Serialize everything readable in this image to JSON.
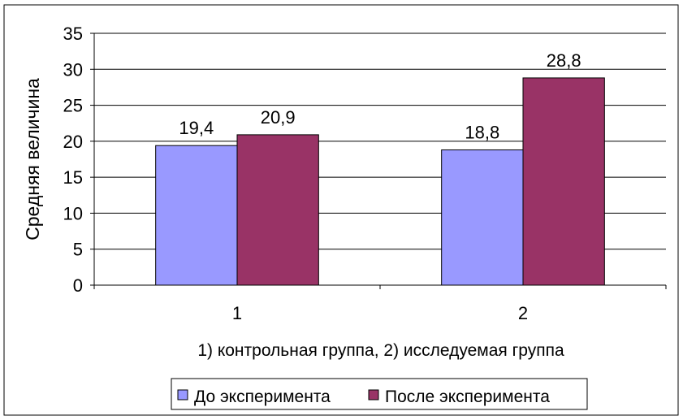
{
  "chart_data": {
    "type": "bar",
    "categories": [
      "1",
      "2"
    ],
    "series": [
      {
        "name": "До эксперимента",
        "values": [
          19.4,
          18.8
        ],
        "labels": [
          "19,4",
          "18,8"
        ],
        "color": "#9999ff"
      },
      {
        "name": "После эксперимента",
        "values": [
          20.9,
          28.8
        ],
        "labels": [
          "20,9",
          "28,8"
        ],
        "color": "#993366"
      }
    ],
    "xlabel": "1) контрольная группа, 2) исследуемая группа",
    "ylabel": "Средняя величина",
    "ylim": [
      0,
      35
    ],
    "yticks": [
      0,
      5,
      10,
      15,
      20,
      25,
      30,
      35
    ],
    "grid": true,
    "legend_position": "bottom"
  }
}
